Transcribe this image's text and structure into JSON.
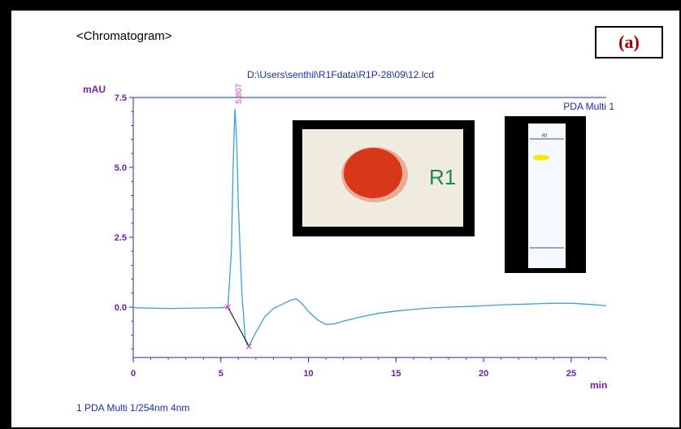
{
  "heading": "<Chromatogram>",
  "panel_label": "(a)",
  "file_path": "D:\\Users\\senthil\\R1Fdata\\R1P-28\\09\\12.lcd",
  "footer": "1  PDA Multi 1/254nm 4nm",
  "photo_sample": {
    "label": "R1",
    "powder_color": "#d8381a",
    "paper_color": "#f1ece0"
  },
  "photo_tlc": {
    "spot_color": "#ffe600",
    "plate_color": "#f4f8ff",
    "rf_mark": "Rf"
  },
  "colors": {
    "trace": "#3aa0d8",
    "axis": "#1d2ea8",
    "tick_text": "#6a1fb0",
    "peak_label": "#e040d0",
    "baseline_marker": "#d040c0"
  },
  "chart_data": {
    "type": "line",
    "title": "",
    "xlabel": "min",
    "ylabel": "mAU",
    "xlim": [
      0,
      27
    ],
    "ylim": [
      -1.9,
      7.5
    ],
    "xticks": [
      "0",
      "5",
      "10",
      "15",
      "20",
      "25"
    ],
    "yticks": [
      "7.5",
      "5.0",
      "2.5",
      "0.0"
    ],
    "grid": false,
    "series": [
      {
        "name": "PDA Multi 1",
        "x": [
          0,
          2,
          4,
          5,
          5.4,
          5.6,
          5.7,
          5.8,
          5.9,
          6.0,
          6.2,
          6.4,
          6.6,
          7.0,
          7.5,
          8.0,
          8.5,
          9.0,
          9.3,
          9.6,
          10.0,
          10.5,
          11.0,
          11.5,
          12.0,
          13.0,
          14.0,
          15.0,
          16.0,
          17.0,
          18.0,
          19.0,
          20.0,
          21.0,
          22.0,
          23.0,
          24.0,
          25.0,
          26.0,
          27.0
        ],
        "y": [
          -0.02,
          -0.05,
          -0.03,
          -0.02,
          0.0,
          2.0,
          5.0,
          7.1,
          6.0,
          3.6,
          0.5,
          -1.2,
          -1.4,
          -0.9,
          -0.35,
          -0.05,
          0.1,
          0.25,
          0.3,
          0.15,
          -0.15,
          -0.45,
          -0.62,
          -0.6,
          -0.5,
          -0.35,
          -0.22,
          -0.14,
          -0.08,
          -0.03,
          0.0,
          0.02,
          0.05,
          0.08,
          0.1,
          0.12,
          0.14,
          0.14,
          0.1,
          0.05
        ]
      }
    ],
    "annotations": [
      {
        "text": "5.807",
        "x": 5.807,
        "y": 7.1
      },
      {
        "text": "PDA Multi 1",
        "position": "top-right"
      }
    ]
  }
}
